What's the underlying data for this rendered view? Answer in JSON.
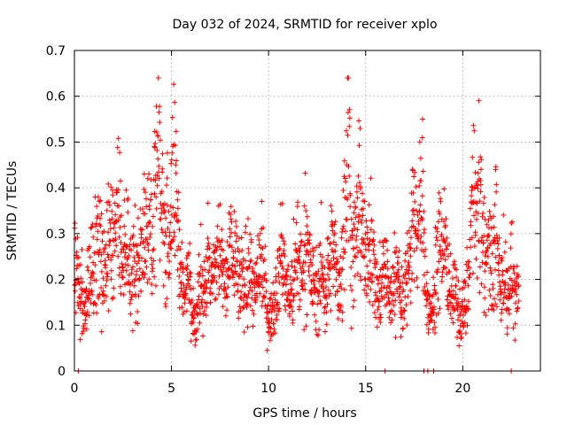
{
  "chart_data": {
    "type": "scatter",
    "title": "Day 032 of 2024, SRMTID for receiver xplo",
    "xlabel": "GPS time / hours",
    "ylabel": "SRMTID / TECUs",
    "xlim": [
      0,
      24
    ],
    "ylim": [
      0,
      0.7
    ],
    "xticks": [
      0,
      5,
      10,
      15,
      20
    ],
    "yticks": [
      0,
      0.1,
      0.2,
      0.3,
      0.4,
      0.5,
      0.6,
      0.7
    ],
    "xtick_labels": [
      "0",
      "5",
      "10",
      "15",
      "20"
    ],
    "ytick_labels": [
      "0",
      "0.1",
      "0.2",
      "0.3",
      "0.4",
      "0.5",
      "0.6",
      "0.7"
    ],
    "grid": true,
    "marker": "plus",
    "color": "#ff0000",
    "x_coverage": [
      0.0,
      22.9
    ],
    "series": [
      {
        "name": "SRMTID",
        "x": [
          0.1,
          0.3,
          0.5,
          0.7,
          0.9,
          1.1,
          1.3,
          1.5,
          1.7,
          1.9,
          2.1,
          2.3,
          2.5,
          2.7,
          2.9,
          3.1,
          3.3,
          3.5,
          3.7,
          3.9,
          4.1,
          4.3,
          4.5,
          4.7,
          4.9,
          5.1,
          5.3,
          5.5,
          5.7,
          5.9,
          6.1,
          6.3,
          6.5,
          6.7,
          6.9,
          7.1,
          7.3,
          7.5,
          7.7,
          7.9,
          8.1,
          8.3,
          8.5,
          8.7,
          8.9,
          9.1,
          9.3,
          9.5,
          9.7,
          9.9,
          10.1,
          10.3,
          10.5,
          10.7,
          10.9,
          11.1,
          11.3,
          11.5,
          11.7,
          11.9,
          12.1,
          12.3,
          12.5,
          12.7,
          12.9,
          13.1,
          13.3,
          13.5,
          13.7,
          13.9,
          14.1,
          14.3,
          14.5,
          14.7,
          14.9,
          15.1,
          15.3,
          15.5,
          15.7,
          15.9,
          16.1,
          16.3,
          16.5,
          16.7,
          16.9,
          17.1,
          17.3,
          17.5,
          17.7,
          17.9,
          18.1,
          18.3,
          18.5,
          18.7,
          18.9,
          19.1,
          19.3,
          19.5,
          19.7,
          19.9,
          20.1,
          20.3,
          20.5,
          20.7,
          20.9,
          21.1,
          21.3,
          21.5,
          21.7,
          21.9,
          22.1,
          22.3,
          22.5,
          22.7,
          22.9
        ],
        "y": [
          0.22,
          0.18,
          0.13,
          0.19,
          0.21,
          0.24,
          0.27,
          0.19,
          0.26,
          0.31,
          0.29,
          0.34,
          0.22,
          0.3,
          0.18,
          0.25,
          0.21,
          0.28,
          0.33,
          0.3,
          0.36,
          0.45,
          0.38,
          0.31,
          0.3,
          0.42,
          0.36,
          0.18,
          0.15,
          0.25,
          0.13,
          0.11,
          0.2,
          0.18,
          0.23,
          0.19,
          0.24,
          0.27,
          0.18,
          0.21,
          0.28,
          0.25,
          0.2,
          0.18,
          0.21,
          0.22,
          0.16,
          0.2,
          0.24,
          0.14,
          0.11,
          0.16,
          0.22,
          0.25,
          0.19,
          0.15,
          0.21,
          0.26,
          0.2,
          0.28,
          0.24,
          0.19,
          0.15,
          0.23,
          0.17,
          0.21,
          0.27,
          0.22,
          0.18,
          0.32,
          0.55,
          0.26,
          0.28,
          0.37,
          0.25,
          0.22,
          0.3,
          0.19,
          0.15,
          0.24,
          0.2,
          0.15,
          0.21,
          0.18,
          0.14,
          0.22,
          0.26,
          0.35,
          0.3,
          0.4,
          0.19,
          0.12,
          0.14,
          0.28,
          0.25,
          0.26,
          0.2,
          0.17,
          0.15,
          0.11,
          0.14,
          0.19,
          0.38,
          0.3,
          0.4,
          0.24,
          0.27,
          0.2,
          0.31,
          0.18,
          0.22,
          0.16,
          0.22,
          0.14,
          0.18
        ],
        "zero_points_x": [
          0.2,
          16.0,
          18.0,
          18.2,
          18.5,
          22.5
        ]
      }
    ]
  }
}
